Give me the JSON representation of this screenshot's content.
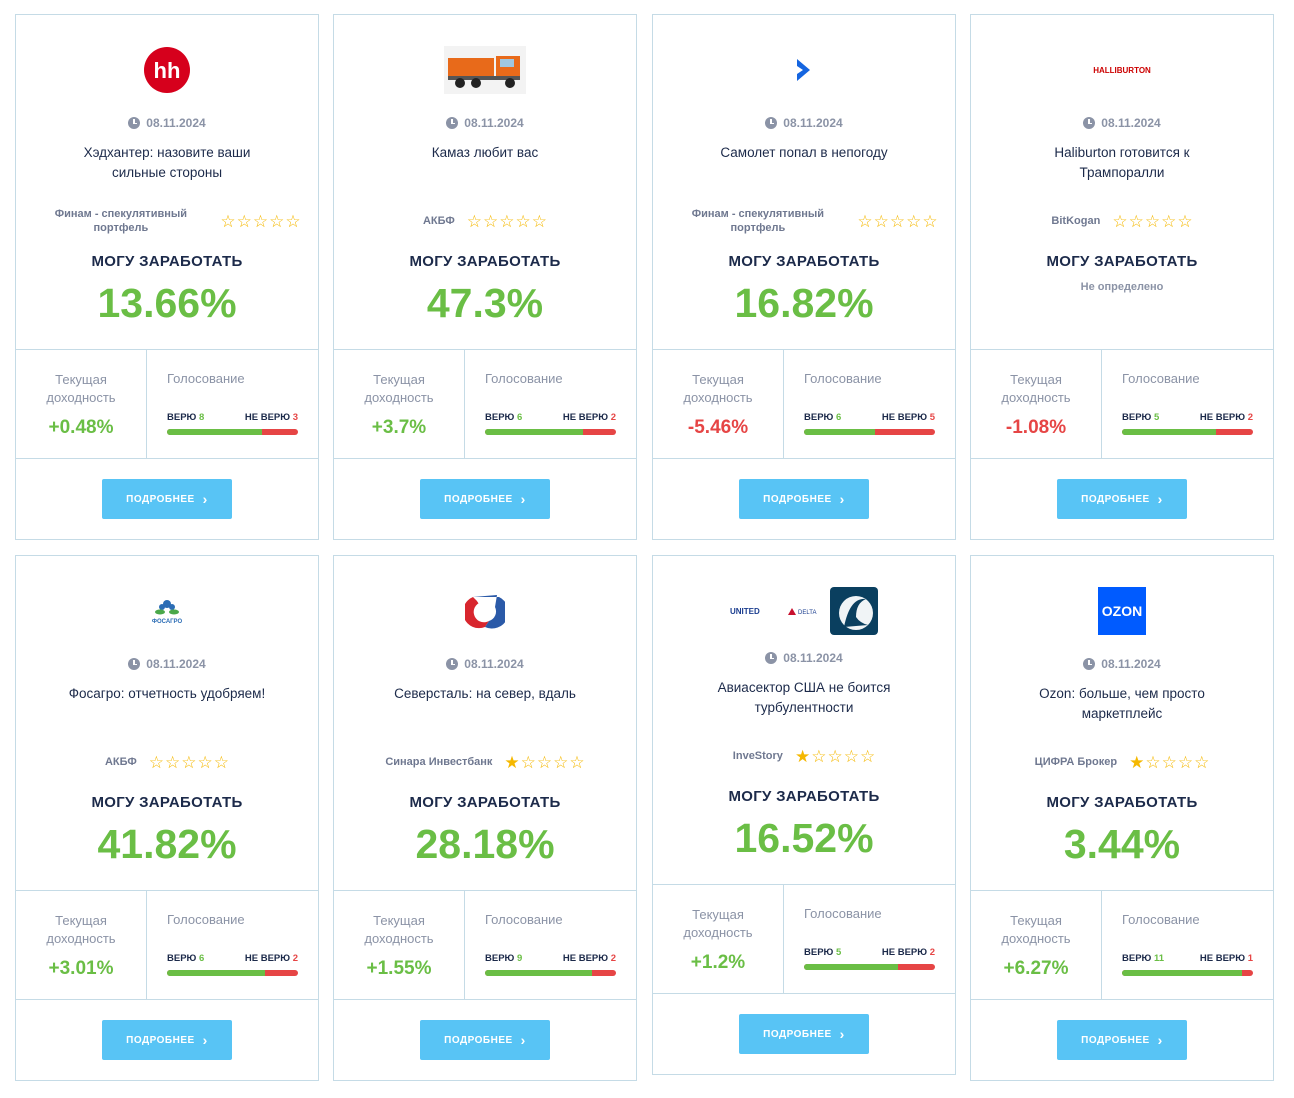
{
  "labels": {
    "earn": "МОГУ ЗАРАБОТАТЬ",
    "current_line1": "Текущая",
    "current_line2": "доходность",
    "voting": "Голосование",
    "believe": "ВЕРЮ",
    "disbelieve": "НЕ ВЕРЮ",
    "more": "ПОДРОБНЕЕ",
    "star_filled": "★",
    "star_empty": "☆",
    "chevron": "›"
  },
  "colors": {
    "accent_green": "#6abe45",
    "accent_red": "#e64545",
    "button": "#58c4f5",
    "star": "#f5b800",
    "border": "#c5dbe6"
  },
  "cards": [
    {
      "logo": "hh-logo",
      "logo_text": "hh",
      "date": "08.11.2024",
      "title": "Хэдхантер: назовите ваши сильные стороны",
      "author": "Финам - спекулятивный портфель",
      "rating": 0,
      "earn": "13.66%",
      "current": "+0.48%",
      "current_sign": "pos",
      "yes": "8",
      "no": "3",
      "yes_ratio": 0.727
    },
    {
      "logo": "kamaz-truck-image",
      "logo_text": "",
      "date": "08.11.2024",
      "title": "Камаз любит вас",
      "author": "АКБФ",
      "rating": 0,
      "earn": "47.3%",
      "current": "+3.7%",
      "current_sign": "pos",
      "yes": "6",
      "no": "2",
      "yes_ratio": 0.75
    },
    {
      "logo": "chevron-logo",
      "logo_text": "",
      "date": "08.11.2024",
      "title": "Самолет попал в непогоду",
      "author": "Финам - спекулятивный портфель",
      "rating": 0,
      "earn": "16.82%",
      "current": "-5.46%",
      "current_sign": "neg",
      "yes": "6",
      "no": "5",
      "yes_ratio": 0.545
    },
    {
      "logo": "halliburton-logo",
      "logo_text": "HALLIBURTON",
      "date": "08.11.2024",
      "title": "Haliburton готовится к Трампоралли",
      "author": "BitKogan",
      "rating": 0,
      "earn": "",
      "earn_undefined": "Не определено",
      "current": "-1.08%",
      "current_sign": "neg",
      "yes": "5",
      "no": "2",
      "yes_ratio": 0.714
    },
    {
      "logo": "phosagro-logo",
      "logo_text": "ФОСАГРО",
      "date": "08.11.2024",
      "title": "Фосагро: отчетность удобряем!",
      "author": "АКБФ",
      "rating": 0,
      "earn": "41.82%",
      "current": "+3.01%",
      "current_sign": "pos",
      "yes": "6",
      "no": "2",
      "yes_ratio": 0.75
    },
    {
      "logo": "severstal-logo",
      "logo_text": "",
      "date": "08.11.2024",
      "title": "Северсталь: на север, вдаль",
      "author": "Синара Инвестбанк",
      "rating": 1,
      "earn": "28.18%",
      "current": "+1.55%",
      "current_sign": "pos",
      "yes": "9",
      "no": "2",
      "yes_ratio": 0.818
    },
    {
      "logo": "airlines-logos",
      "logo_text": "UNITED",
      "logo_text2": "DELTA",
      "date": "08.11.2024",
      "title": "Авиасектор США не боится турбулентности",
      "author": "InveStory",
      "rating": 1,
      "earn": "16.52%",
      "current": "+1.2%",
      "current_sign": "pos",
      "yes": "5",
      "no": "2",
      "yes_ratio": 0.714
    },
    {
      "logo": "ozon-logo",
      "logo_text": "OZON",
      "date": "08.11.2024",
      "title": "Ozon: больше, чем просто маркетплейс",
      "author": "ЦИФРА Брокер",
      "rating": 1,
      "earn": "3.44%",
      "current": "+6.27%",
      "current_sign": "pos",
      "yes": "11",
      "no": "1",
      "yes_ratio": 0.917
    }
  ]
}
